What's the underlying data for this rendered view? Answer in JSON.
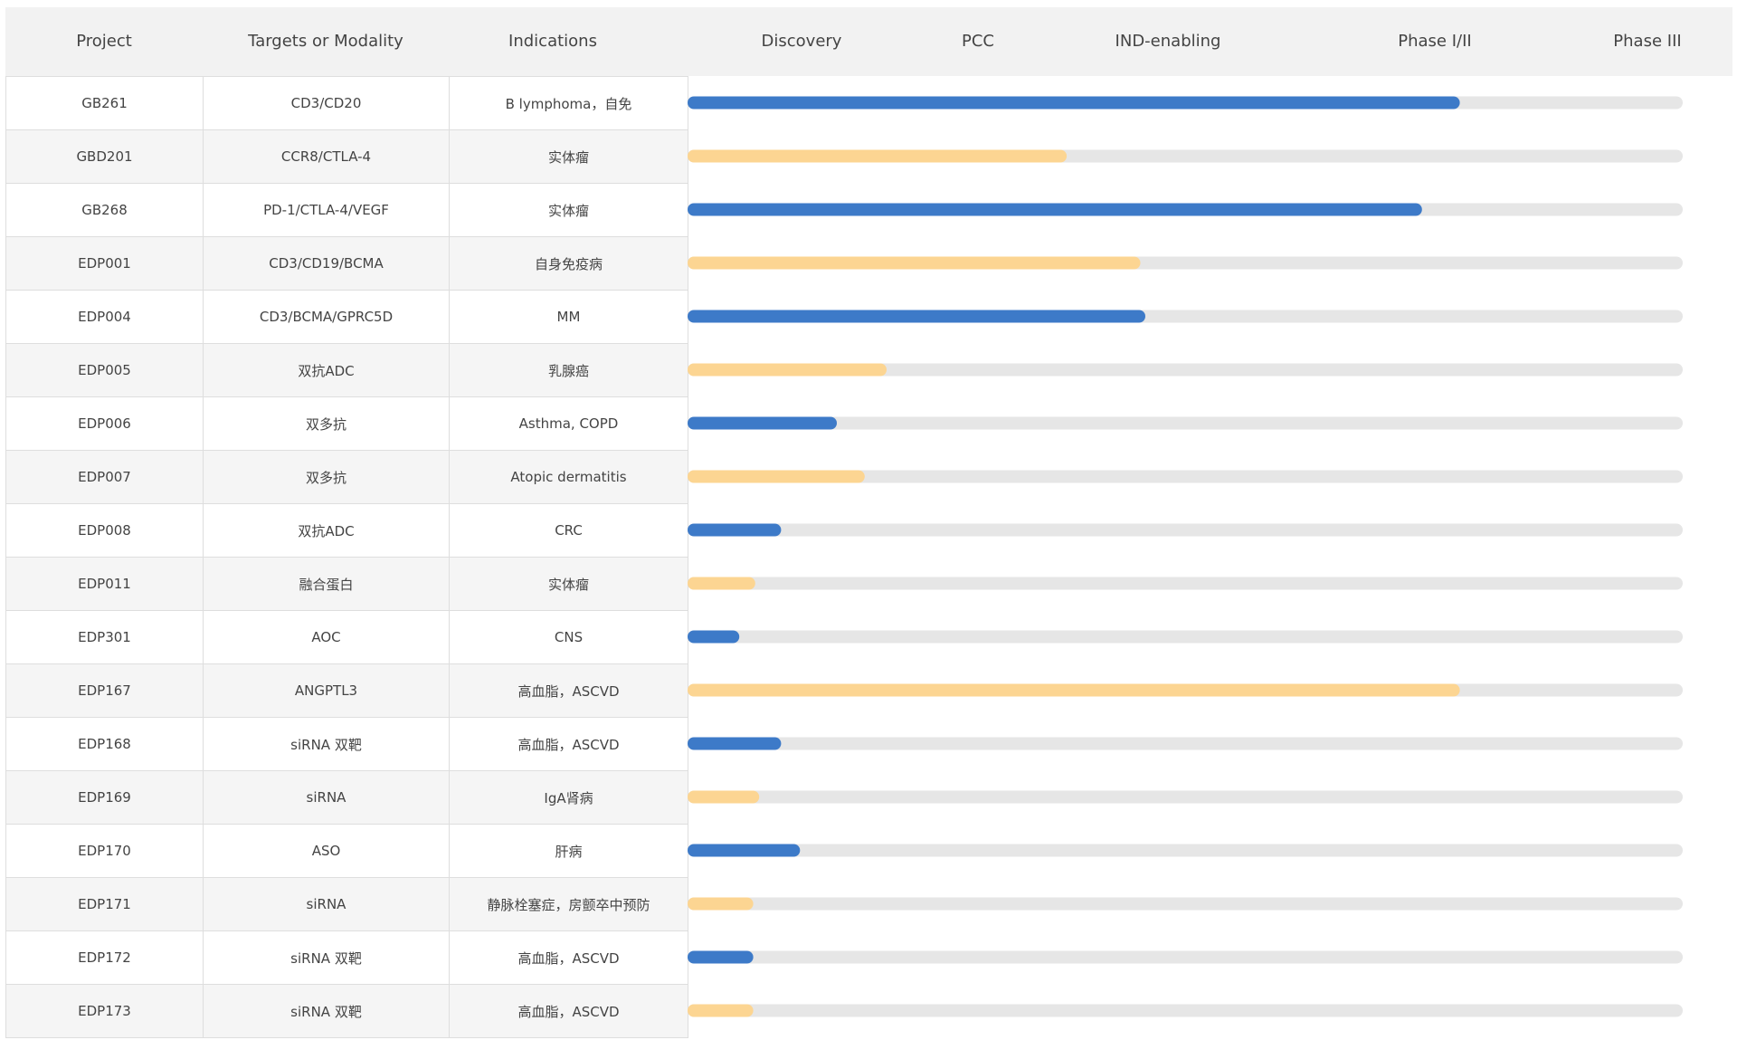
{
  "table": {
    "headers": {
      "project": "Project",
      "targets": "Targets or Modality",
      "indications": "Indications"
    },
    "rows": [
      {
        "project": "GB261",
        "targets": "CD3/CD20",
        "indication": "B lymphoma，自免"
      },
      {
        "project": "GBD201",
        "targets": "CCR8/CTLA-4",
        "indication": "实体瘤"
      },
      {
        "project": "GB268",
        "targets": "PD-1/CTLA-4/VEGF",
        "indication": "实体瘤"
      },
      {
        "project": "EDP001",
        "targets": "CD3/CD19/BCMA",
        "indication": "自身免疫病"
      },
      {
        "project": "EDP004",
        "targets": "CD3/BCMA/GPRC5D",
        "indication": "MM"
      },
      {
        "project": "EDP005",
        "targets": "双抗ADC",
        "indication": "乳腺癌"
      },
      {
        "project": "EDP006",
        "targets": "双多抗",
        "indication": "Asthma, COPD"
      },
      {
        "project": "EDP007",
        "targets": "双多抗",
        "indication": "Atopic dermatitis"
      },
      {
        "project": "EDP008",
        "targets": "双抗ADC",
        "indication": "CRC"
      },
      {
        "project": "EDP011",
        "targets": "融合蛋白",
        "indication": "实体瘤"
      },
      {
        "project": "EDP301",
        "targets": "AOC",
        "indication": "CNS"
      },
      {
        "project": "EDP167",
        "targets": "ANGPTL3",
        "indication": "高血脂，ASCVD"
      },
      {
        "project": "EDP168",
        "targets": "siRNA 双靶",
        "indication": "高血脂，ASCVD"
      },
      {
        "project": "EDP169",
        "targets": "siRNA",
        "indication": "IgA肾病"
      },
      {
        "project": "EDP170",
        "targets": "ASO",
        "indication": "肝病"
      },
      {
        "project": "EDP171",
        "targets": "siRNA",
        "indication": "静脉栓塞症，房颤卒中预防"
      },
      {
        "project": "EDP172",
        "targets": "siRNA 双靶",
        "indication": "高血脂，ASCVD"
      },
      {
        "project": "EDP173",
        "targets": "siRNA 双靶",
        "indication": "高血脂，ASCVD"
      }
    ]
  },
  "chart_data": {
    "type": "bar",
    "orientation": "horizontal",
    "stages": [
      "Discovery",
      "PCC",
      "IND-enabling",
      "Phase I/II",
      "Phase III"
    ],
    "categories": [
      "GB261",
      "GBD201",
      "GB268",
      "EDP001",
      "EDP004",
      "EDP005",
      "EDP006",
      "EDP007",
      "EDP008",
      "EDP011",
      "EDP301",
      "EDP167",
      "EDP168",
      "EDP169",
      "EDP170",
      "EDP171",
      "EDP172",
      "EDP173"
    ],
    "progress_fraction": [
      0.776,
      0.381,
      0.738,
      0.455,
      0.46,
      0.2,
      0.15,
      0.178,
      0.094,
      0.068,
      0.052,
      0.776,
      0.094,
      0.072,
      0.113,
      0.066,
      0.066,
      0.066
    ],
    "colors": {
      "blue": "#3d7ac8",
      "yellow": "#fcd592",
      "track": "#e6e6e6",
      "header_bg": "#f2f2f2"
    },
    "bar_color_pattern": [
      "blue",
      "yellow",
      "blue",
      "yellow",
      "blue",
      "yellow",
      "blue",
      "yellow",
      "blue",
      "yellow",
      "blue",
      "yellow",
      "blue",
      "yellow",
      "blue",
      "yellow",
      "blue",
      "yellow"
    ]
  }
}
